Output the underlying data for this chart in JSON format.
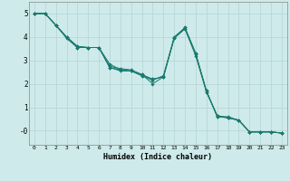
{
  "xlabel": "Humidex (Indice chaleur)",
  "background_color": "#ceeaea",
  "grid_color": "#b8d8d8",
  "line_color": "#1a7a6e",
  "xlim": [
    -0.5,
    23.5
  ],
  "ylim": [
    -0.6,
    5.5
  ],
  "xticks": [
    0,
    1,
    2,
    3,
    4,
    5,
    6,
    7,
    8,
    9,
    10,
    11,
    12,
    13,
    14,
    15,
    16,
    17,
    18,
    19,
    20,
    21,
    22,
    23
  ],
  "yticks": [
    0,
    1,
    2,
    3,
    4,
    5
  ],
  "ytick_labels": [
    "-0",
    "1",
    "2",
    "3",
    "4",
    "5"
  ],
  "series": [
    [
      5.0,
      5.0,
      4.5,
      3.95,
      3.55,
      3.55,
      3.55,
      2.7,
      2.55,
      2.55,
      2.35,
      2.2,
      2.3,
      3.95,
      4.35,
      3.2,
      1.65,
      0.65,
      0.55,
      0.45,
      -0.05,
      -0.05,
      -0.05,
      -0.1
    ],
    [
      5.0,
      5.0,
      4.5,
      3.95,
      3.55,
      3.55,
      3.55,
      2.7,
      2.6,
      2.55,
      2.4,
      2.2,
      2.3,
      3.95,
      4.4,
      3.3,
      1.65,
      0.65,
      0.55,
      0.45,
      -0.05,
      -0.05,
      -0.05,
      -0.1
    ],
    [
      5.0,
      5.0,
      4.5,
      4.0,
      3.6,
      3.55,
      3.55,
      2.85,
      2.6,
      2.55,
      2.35,
      2.15,
      2.35,
      4.0,
      4.4,
      3.3,
      1.7,
      0.6,
      0.55,
      0.45,
      -0.05,
      -0.05,
      -0.05,
      -0.1
    ],
    [
      5.0,
      5.0,
      4.5,
      4.0,
      3.6,
      3.55,
      3.55,
      2.75,
      2.65,
      2.6,
      2.4,
      2.0,
      2.3,
      3.95,
      4.35,
      3.25,
      1.7,
      0.6,
      0.6,
      0.45,
      -0.05,
      -0.05,
      -0.05,
      -0.1
    ]
  ]
}
